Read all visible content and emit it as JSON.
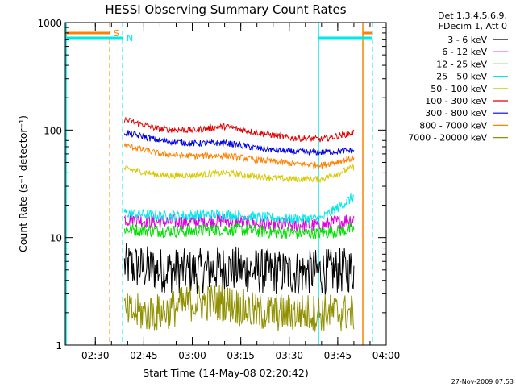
{
  "chart_data": {
    "type": "line",
    "title": "HESSI Observing Summary Count Rates",
    "xlabel": "Start Time (14-May-08 02:20:42)",
    "ylabel": "Count Rate (s⁻¹ detector⁻¹)",
    "y_scale": "log",
    "ylim": [
      1,
      1000
    ],
    "xlim": [
      "02:20:42",
      "04:00"
    ],
    "x_ticks": [
      "02:30",
      "02:45",
      "03:00",
      "03:15",
      "03:30",
      "03:45",
      "04:00"
    ],
    "y_ticks": [
      "1",
      "10",
      "100",
      "1000"
    ],
    "grid": false,
    "legend_position": "top-right",
    "legend_header": [
      "Det 1,3,4,5,6,9,",
      "FDecim 1, Att 0"
    ],
    "series": [
      {
        "name": "3 - 6 keV",
        "color": "#000000",
        "x": [
          "02:39",
          "02:50",
          "03:00",
          "03:10",
          "03:20",
          "03:30",
          "03:40",
          "03:50"
        ],
        "values": [
          5.5,
          5.0,
          4.8,
          5.2,
          4.9,
          4.7,
          4.8,
          5.0
        ]
      },
      {
        "name": "6 - 12 keV",
        "color": "#e000e0",
        "x": [
          "02:39",
          "02:50",
          "03:00",
          "03:10",
          "03:20",
          "03:30",
          "03:40",
          "03:50"
        ],
        "values": [
          15,
          14,
          14,
          14.5,
          13.5,
          13,
          13,
          15
        ]
      },
      {
        "name": "12 - 25 keV",
        "color": "#00e000",
        "x": [
          "02:39",
          "02:50",
          "03:00",
          "03:10",
          "03:20",
          "03:30",
          "03:40",
          "03:50"
        ],
        "values": [
          12,
          11.5,
          11.5,
          12,
          11.5,
          11,
          11,
          12
        ]
      },
      {
        "name": "25 - 50 keV",
        "color": "#00e8e8",
        "x": [
          "02:39",
          "02:50",
          "03:00",
          "03:10",
          "03:20",
          "03:30",
          "03:40",
          "03:50"
        ],
        "values": [
          17,
          16,
          16,
          16.5,
          15.5,
          15,
          15,
          24
        ]
      },
      {
        "name": "50 - 100 keV",
        "color": "#d8c800",
        "x": [
          "02:39",
          "02:50",
          "03:00",
          "03:10",
          "03:20",
          "03:30",
          "03:40",
          "03:50"
        ],
        "values": [
          44,
          38,
          38,
          40,
          37,
          35,
          35,
          45
        ]
      },
      {
        "name": "100 - 300 keV",
        "color": "#e00000",
        "x": [
          "02:39",
          "02:50",
          "03:00",
          "03:10",
          "03:20",
          "03:30",
          "03:40",
          "03:50"
        ],
        "values": [
          125,
          102,
          100,
          108,
          95,
          85,
          82,
          95
        ]
      },
      {
        "name": "300 - 800 keV",
        "color": "#0000e0",
        "x": [
          "02:39",
          "02:50",
          "03:00",
          "03:10",
          "03:20",
          "03:30",
          "03:40",
          "03:50"
        ],
        "values": [
          95,
          80,
          75,
          76,
          68,
          63,
          62,
          65
        ]
      },
      {
        "name": "800 - 7000 keV",
        "color": "#ff8000",
        "x": [
          "02:39",
          "02:50",
          "03:00",
          "03:10",
          "03:20",
          "03:30",
          "03:40",
          "03:50"
        ],
        "values": [
          72,
          60,
          57,
          58,
          53,
          49,
          47,
          55
        ]
      },
      {
        "name": "7000 - 20000 keV",
        "color": "#909000",
        "x": [
          "02:39",
          "02:50",
          "03:00",
          "03:10",
          "03:20",
          "03:30",
          "03:40",
          "03:50"
        ],
        "values": [
          2.0,
          2.0,
          2.5,
          2.5,
          2.0,
          2.0,
          2.0,
          2.0
        ]
      }
    ],
    "flag_markers": [
      {
        "label": "S",
        "color": "#ff8000"
      },
      {
        "label": "N",
        "color": "#00e8e8"
      }
    ]
  },
  "footer": {
    "timestamp": "27-Nov-2009 07:53"
  }
}
